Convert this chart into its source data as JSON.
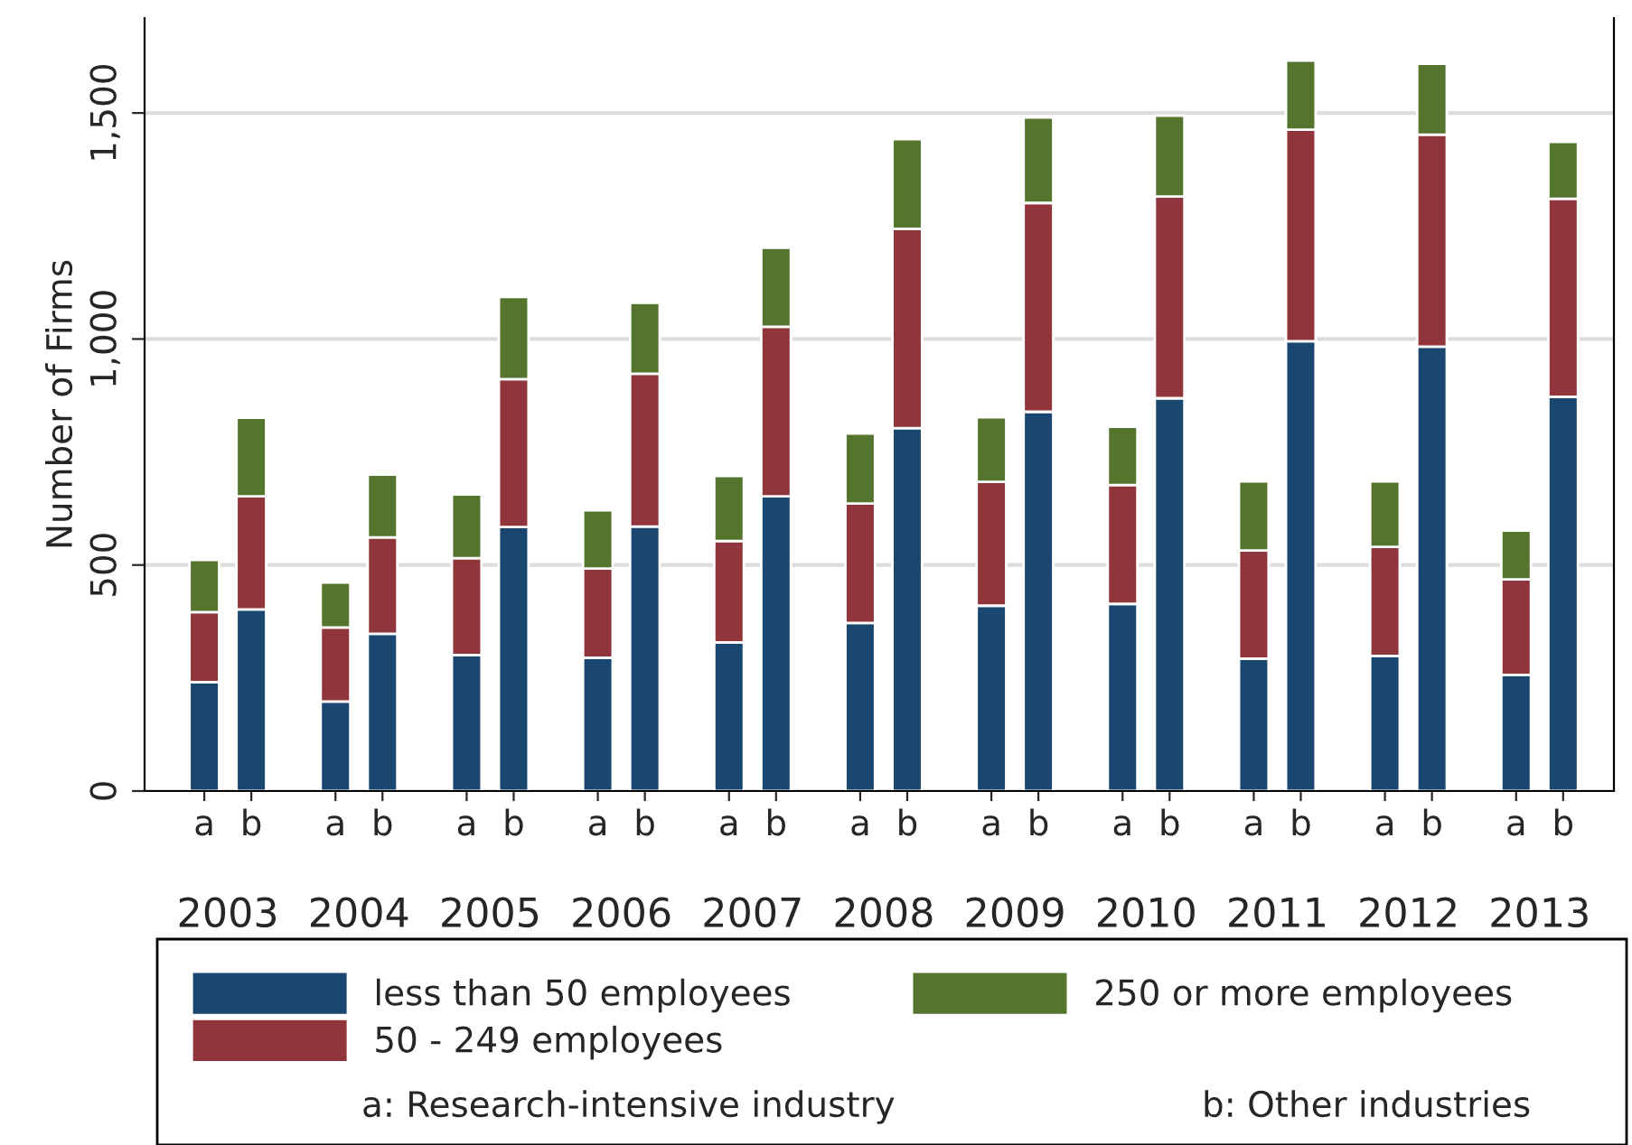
{
  "chart_data": {
    "type": "bar",
    "stacked": true,
    "ylabel": "Number of Firms",
    "categories": [
      "a",
      "b",
      "a",
      "b",
      "a",
      "b",
      "a",
      "b",
      "a",
      "b",
      "a",
      "b",
      "a",
      "b",
      "a",
      "b",
      "a",
      "b",
      "a",
      "b",
      "a",
      "b"
    ],
    "series": [
      {
        "name": "less than 50 employees",
        "color": "#1a476f",
        "values": [
          241,
          402,
          198,
          348,
          301,
          584,
          295,
          585,
          329,
          652,
          372,
          803,
          410,
          839,
          414,
          869,
          293,
          995,
          299,
          983,
          257,
          872
        ]
      },
      {
        "name": "50 - 249 employees",
        "color": "#90353b",
        "values": [
          155,
          250,
          164,
          213,
          214,
          327,
          197,
          338,
          224,
          375,
          264,
          441,
          274,
          462,
          263,
          446,
          239,
          468,
          241,
          469,
          211,
          438
        ]
      },
      {
        "name": "250 or more employees",
        "color": "#55752f",
        "values": [
          115,
          174,
          99,
          139,
          141,
          182,
          129,
          157,
          144,
          175,
          155,
          198,
          143,
          189,
          129,
          179,
          153,
          153,
          145,
          157,
          108,
          126
        ]
      }
    ],
    "ylim": [
      0,
      1710
    ],
    "yticks": [
      0,
      {
        "value": 500,
        "label": "500"
      },
      {
        "value": 1000,
        "label": "1,000"
      },
      {
        "value": 1500,
        "label": "1,500"
      }
    ],
    "grid": "y",
    "legend": "bottom",
    "annotations": [
      "2003",
      "2004",
      "2005",
      "2006",
      "2007",
      "2008",
      "2009",
      "2010",
      "2011",
      "2012",
      "2013",
      "a: Research-intensive industry",
      "b: Other industries"
    ]
  }
}
